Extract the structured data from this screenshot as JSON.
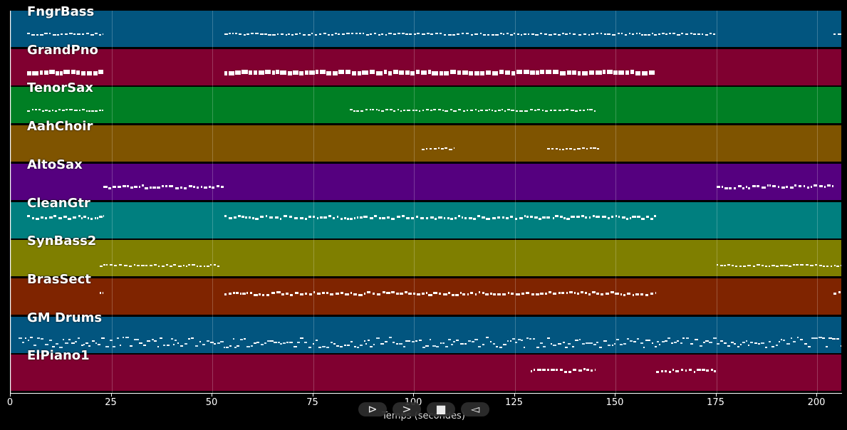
{
  "player": {
    "controls": [
      {
        "name": "play-icon-button",
        "glyph": "⊳"
      },
      {
        "name": "forward-button",
        "glyph": ">"
      },
      {
        "name": "stop-button",
        "glyph": "■"
      },
      {
        "name": "rewind-button",
        "glyph": "◅"
      }
    ]
  },
  "chart_data": {
    "type": "piano-roll",
    "title": "",
    "xlabel": "Temps (secondes)",
    "ylabel": "",
    "xlim": [
      0,
      206
    ],
    "xticks": [
      0,
      25,
      50,
      75,
      100,
      125,
      150,
      175,
      200
    ],
    "grid": true,
    "tracks": [
      {
        "name": "FngrBass",
        "color": "#02557f",
        "segments": [
          [
            4,
            23
          ],
          [
            53,
            175
          ],
          [
            204,
            206
          ]
        ],
        "row": "top",
        "kind": "small"
      },
      {
        "name": "GrandPno",
        "color": "#800030",
        "segments": [
          [
            4,
            23
          ],
          [
            53,
            160
          ]
        ],
        "row": "top",
        "kind": "big"
      },
      {
        "name": "TenorSax",
        "color": "#007f24",
        "segments": [
          [
            4,
            23
          ],
          [
            84,
            145
          ]
        ],
        "row": "top",
        "kind": "small"
      },
      {
        "name": "AahChoir",
        "color": "#7f5400",
        "segments": [
          [
            102,
            110
          ],
          [
            133,
            146
          ]
        ],
        "row": "top",
        "kind": "small"
      },
      {
        "name": "AltoSax",
        "color": "#55007f",
        "segments": [
          [
            23,
            53
          ],
          [
            175,
            204
          ]
        ],
        "row": "top",
        "kind": "medium"
      },
      {
        "name": "CleanGtr",
        "color": "#007f7f",
        "segments": [
          [
            4,
            23
          ],
          [
            53,
            160
          ]
        ],
        "row": "middle",
        "kind": "medium"
      },
      {
        "name": "SynBass2",
        "color": "#7f7f00",
        "segments": [
          [
            22,
            52
          ],
          [
            175,
            206
          ]
        ],
        "row": "bottom",
        "kind": "small"
      },
      {
        "name": "BrasSect",
        "color": "#7f2400",
        "segments": [
          [
            22,
            23
          ],
          [
            53,
            160
          ],
          [
            204,
            206
          ]
        ],
        "row": "middle",
        "kind": "medium"
      },
      {
        "name": "GM Drums",
        "color": "#02557f",
        "segments": [
          [
            2,
            206
          ]
        ],
        "row": "bottom",
        "kind": "drums"
      },
      {
        "name": "ElPiano1",
        "color": "#800030",
        "segments": [
          [
            129,
            145
          ],
          [
            160,
            175
          ]
        ],
        "row": "middle",
        "kind": "medium"
      }
    ]
  }
}
